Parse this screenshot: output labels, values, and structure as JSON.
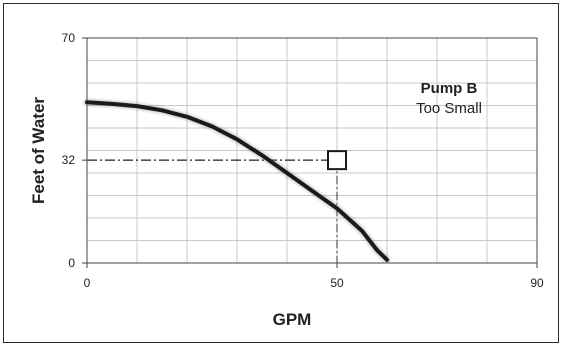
{
  "chart_data": {
    "type": "line",
    "title": "",
    "xlabel": "GPM",
    "ylabel": "Feet of Water",
    "xlim": [
      0,
      90
    ],
    "ylim": [
      0,
      70
    ],
    "x_ticks": [
      "0",
      "50",
      "90"
    ],
    "y_ticks": [
      "70",
      "32",
      "0"
    ],
    "grid": true,
    "series": [
      {
        "x": [
          0,
          5,
          10,
          15,
          20,
          25,
          30,
          35,
          40,
          45,
          50,
          55,
          58,
          60
        ],
        "y": [
          50,
          49.5,
          48.8,
          47.5,
          45.5,
          42.5,
          38.5,
          33.5,
          28,
          22.5,
          17,
          10,
          4,
          1
        ],
        "color": "#1a1a1a"
      }
    ],
    "operating_point": {
      "x": 50,
      "y": 32
    },
    "annotation": {
      "title": "Pump B",
      "subtitle": "Too Small"
    }
  }
}
